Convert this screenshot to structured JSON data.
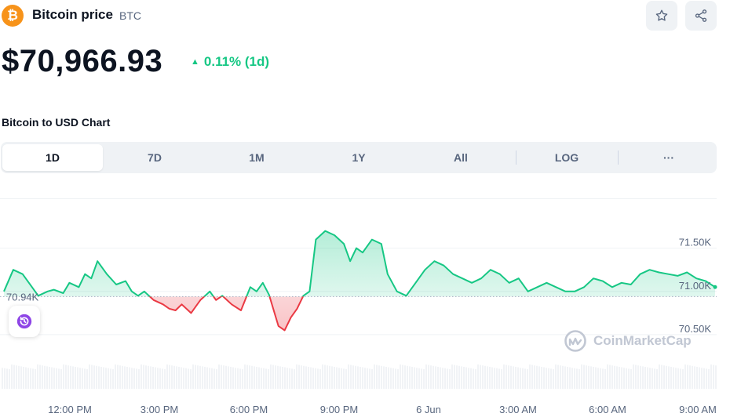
{
  "header": {
    "title": "Bitcoin price",
    "symbol": "BTC",
    "logo_glyph": "₿",
    "logo_color": "#f7931a",
    "price": "$70,966.93",
    "change": "0.11% (1d)",
    "change_color": "#16c784",
    "icons": [
      "star-icon",
      "share-icon"
    ]
  },
  "chart_heading": "Bitcoin to USD Chart",
  "tabs": [
    {
      "label": "1D",
      "active": true
    },
    {
      "label": "7D"
    },
    {
      "label": "1M"
    },
    {
      "label": "1Y"
    },
    {
      "label": "All"
    },
    {
      "label": "LOG"
    },
    {
      "label": "···"
    }
  ],
  "watermark": "CoinMarketCap",
  "chart_data": {
    "type": "area",
    "title": "",
    "xlabel": "",
    "ylabel": "",
    "baseline": 70940,
    "baseline_label": "70.94K",
    "y_ticks": [
      71500,
      71000,
      70500
    ],
    "y_tick_labels": [
      "71.50K",
      "71.00K",
      "70.50K"
    ],
    "ylim": [
      70200,
      72050
    ],
    "x_range": [
      "10:30 AM",
      "9:15 AM"
    ],
    "x_ticks": [
      "12:00 PM",
      "3:00 PM",
      "6:00 PM",
      "9:00 PM",
      "6 Jun",
      "3:00 AM",
      "6:00 AM",
      "9:00 AM"
    ],
    "up_color": "#16c784",
    "down_color": "#ea3943",
    "grid": true,
    "series": [
      {
        "x": [
          0,
          0.3,
          0.6,
          0.9,
          1.1,
          1.4,
          1.6,
          1.9,
          2.1,
          2.4,
          2.6,
          2.8,
          3.0,
          3.3,
          3.6,
          3.9,
          4.1,
          4.3,
          4.5,
          4.8,
          5.1,
          5.3,
          5.5,
          5.7,
          6.0,
          6.3,
          6.6,
          6.8,
          7.0,
          7.3,
          7.6,
          7.9,
          8.1,
          8.3,
          8.5,
          8.8,
          9.0,
          9.2,
          9.4,
          9.6,
          9.8,
          10.0,
          10.3,
          10.6,
          10.9,
          11.1,
          11.3,
          11.5,
          11.8,
          12.1,
          12.3,
          12.6,
          12.9,
          13.2,
          13.5,
          13.8,
          14.1,
          14.4,
          14.7,
          15.0,
          15.3,
          15.6,
          15.9,
          16.2,
          16.5,
          16.8,
          17.1,
          17.4,
          17.7,
          18.0,
          18.3,
          18.6,
          18.9,
          19.2,
          19.5,
          19.8,
          20.1,
          20.4,
          20.7,
          21.0,
          21.3,
          21.6,
          21.9,
          22.2,
          22.5,
          22.8
        ],
        "y": [
          71000,
          71250,
          71200,
          71050,
          70950,
          71000,
          71020,
          70980,
          71100,
          71050,
          71200,
          71150,
          71350,
          71200,
          71080,
          71120,
          71000,
          70950,
          71000,
          70900,
          70850,
          70800,
          70780,
          70850,
          70750,
          70900,
          71000,
          70900,
          70950,
          70850,
          70780,
          71050,
          71000,
          71100,
          70960,
          70600,
          70550,
          70700,
          70800,
          70950,
          71000,
          71600,
          71700,
          71650,
          71550,
          71350,
          71500,
          71450,
          71600,
          71550,
          71200,
          71000,
          70950,
          71100,
          71250,
          71350,
          71300,
          71200,
          71150,
          71100,
          71150,
          71250,
          71200,
          71100,
          71150,
          71000,
          71050,
          71100,
          71050,
          71000,
          71000,
          71050,
          71150,
          71120,
          71050,
          71100,
          71080,
          71200,
          71250,
          71220,
          71200,
          71180,
          71220,
          71150,
          71120,
          71050
        ]
      }
    ],
    "volume": true
  }
}
